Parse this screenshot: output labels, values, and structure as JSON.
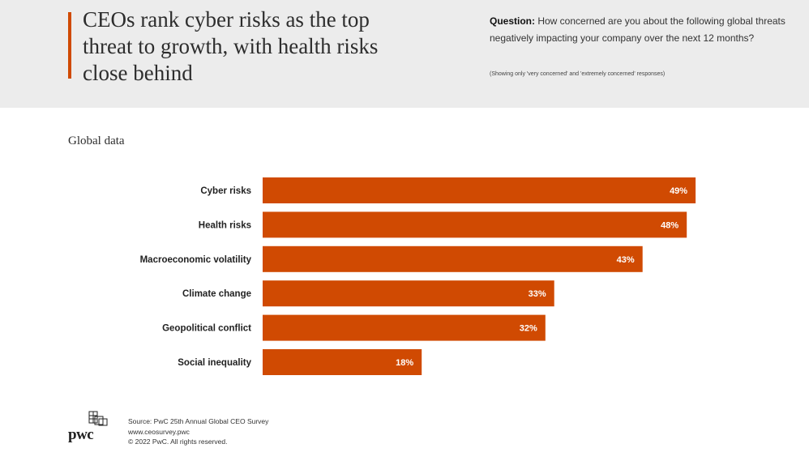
{
  "header": {
    "title": "CEOs rank cyber risks as the top threat to growth, with health risks close behind",
    "question_label": "Question:",
    "question_text": "How concerned are you about the following global threats negatively impacting your company over the next 12 months?",
    "question_note": "(Showing only 'very concerned' and 'extremely concerned' responses)"
  },
  "subtitle": "Global data",
  "colors": {
    "accent": "#d04a02",
    "header_bg": "#ececec"
  },
  "chart_data": {
    "type": "bar",
    "orientation": "horizontal",
    "categories": [
      "Cyber risks",
      "Health risks",
      "Macroeconomic volatility",
      "Climate change",
      "Geopolitical conflict",
      "Social inequality"
    ],
    "values": [
      49,
      48,
      43,
      33,
      32,
      18
    ],
    "data_labels": [
      "49%",
      "48%",
      "43%",
      "33%",
      "32%",
      "18%"
    ],
    "unit": "%",
    "title": "",
    "xlabel": "",
    "ylabel": "",
    "grid": false,
    "legend": "none"
  },
  "footer": {
    "logo_text": "pwc",
    "source": "Source: PwC 25th Annual Global CEO Survey",
    "url": "www.ceosurvey.pwc",
    "copyright": "© 2022 PwC. All rights reserved."
  }
}
